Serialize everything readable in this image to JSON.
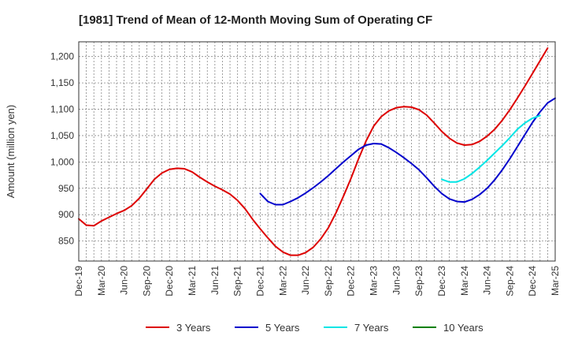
{
  "chart_data": {
    "type": "line",
    "title": "[1981]  Trend of Mean of 12-Month Moving Sum of Operating CF",
    "xlabel": "",
    "ylabel": "Amount (million yen)",
    "ylim": [
      812,
      1228
    ],
    "yticks": [
      850,
      900,
      950,
      1000,
      1050,
      1100,
      1150,
      1200
    ],
    "ytick_labels": [
      "850",
      "900",
      "950",
      "1,000",
      "1,050",
      "1,100",
      "1,150",
      "1,200"
    ],
    "x_tick_labels": [
      "Dec-19",
      "Mar-20",
      "Jun-20",
      "Sep-20",
      "Dec-20",
      "Mar-21",
      "Jun-21",
      "Sep-21",
      "Dec-21",
      "Mar-22",
      "Jun-22",
      "Sep-22",
      "Dec-22",
      "Mar-23",
      "Jun-23",
      "Sep-23",
      "Dec-23",
      "Mar-24",
      "Jun-24",
      "Sep-24",
      "Dec-24",
      "Mar-25"
    ],
    "x_start": "Dec-19",
    "x_months": 63,
    "grid": true,
    "legend_position": "bottom",
    "series": [
      {
        "name": "3 Years",
        "color": "#dd0000",
        "start_index": 0,
        "values": [
          892,
          880,
          879,
          888,
          895,
          902,
          908,
          917,
          931,
          949,
          967,
          979,
          986,
          988,
          987,
          981,
          971,
          962,
          954,
          947,
          939,
          927,
          911,
          891,
          873,
          856,
          840,
          829,
          823,
          823,
          828,
          838,
          854,
          875,
          903,
          935,
          969,
          1006,
          1040,
          1068,
          1086,
          1097,
          1103,
          1105,
          1104,
          1099,
          1089,
          1074,
          1058,
          1045,
          1036,
          1032,
          1033,
          1039,
          1049,
          1062,
          1079,
          1099,
          1121,
          1144,
          1168,
          1192,
          1216
        ]
      },
      {
        "name": "5 Years",
        "color": "#0000cc",
        "start_index": 24,
        "values": [
          940,
          925,
          919,
          919,
          925,
          932,
          941,
          951,
          962,
          974,
          987,
          1000,
          1012,
          1024,
          1032,
          1035,
          1034,
          1027,
          1018,
          1008,
          997,
          985,
          970,
          954,
          940,
          930,
          925,
          924,
          929,
          938,
          950,
          966,
          985,
          1006,
          1029,
          1052,
          1075,
          1095,
          1112,
          1121
        ]
      },
      {
        "name": "7 Years",
        "color": "#00e5e5",
        "start_index": 48,
        "values": [
          967,
          962,
          962,
          968,
          978,
          990,
          1003,
          1017,
          1031,
          1046,
          1062,
          1074,
          1083,
          1088
        ]
      },
      {
        "name": "10 Years",
        "color": "#008000",
        "start_index": 0,
        "values": []
      }
    ]
  }
}
